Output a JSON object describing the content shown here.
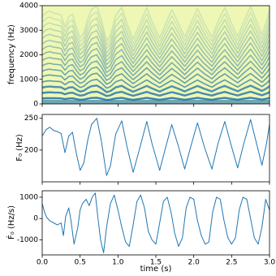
{
  "chart_data": [
    {
      "type": "spectrogram",
      "ylabel": "frequency (Hz)",
      "ylim": [
        0,
        4000
      ],
      "yticks": [
        0,
        1000,
        2000,
        3000,
        4000
      ],
      "colormap": {
        "low": "#eef8b4",
        "high": "#1d6fae"
      }
    },
    {
      "type": "line",
      "ylabel": "F₀ (Hz)",
      "color": "#1f77b4",
      "ylim": [
        150,
        256
      ],
      "yticks": [
        200,
        250
      ],
      "x": [
        0,
        0.05,
        0.1,
        0.15,
        0.2,
        0.25,
        0.3,
        0.35,
        0.4,
        0.45,
        0.5,
        0.55,
        0.6,
        0.65,
        0.72,
        0.78,
        0.85,
        0.9,
        0.97,
        1.05,
        1.12,
        1.2,
        1.27,
        1.38,
        1.45,
        1.55,
        1.62,
        1.71,
        1.8,
        1.88,
        1.96,
        2.05,
        2.14,
        2.24,
        2.32,
        2.41,
        2.5,
        2.58,
        2.66,
        2.75,
        2.83,
        2.9,
        2.96,
        3.0
      ],
      "values": [
        222,
        232,
        236,
        231,
        229,
        226,
        196,
        222,
        228,
        195,
        168,
        180,
        215,
        240,
        250,
        215,
        160,
        175,
        225,
        246,
        205,
        165,
        195,
        245,
        210,
        168,
        200,
        240,
        205,
        170,
        205,
        243,
        205,
        170,
        210,
        245,
        205,
        172,
        210,
        248,
        210,
        176,
        210,
        240
      ]
    },
    {
      "type": "line",
      "ylabel": "Ḟ₀ (Hz/s)",
      "xlabel": "time (s)",
      "color": "#1f77b4",
      "ylim": [
        -1700,
        1300
      ],
      "yticks": [
        -1000,
        0,
        1000
      ],
      "xlim": [
        0,
        3
      ],
      "xticks": [
        {
          "value": 0,
          "label": "0.0"
        },
        0.5,
        {
          "value": 1,
          "label": "1.0"
        },
        1.5,
        {
          "value": 2,
          "label": "2.0"
        },
        2.5,
        {
          "value": 3,
          "label": "3.0"
        }
      ],
      "x": [
        0,
        0.03,
        0.06,
        0.1,
        0.15,
        0.2,
        0.25,
        0.28,
        0.31,
        0.35,
        0.38,
        0.42,
        0.47,
        0.5,
        0.53,
        0.58,
        0.62,
        0.66,
        0.7,
        0.73,
        0.77,
        0.81,
        0.85,
        0.9,
        0.95,
        1.0,
        1.05,
        1.1,
        1.15,
        1.2,
        1.25,
        1.3,
        1.35,
        1.4,
        1.45,
        1.5,
        1.55,
        1.6,
        1.65,
        1.7,
        1.75,
        1.8,
        1.85,
        1.9,
        1.95,
        2.0,
        2.05,
        2.1,
        2.15,
        2.2,
        2.25,
        2.3,
        2.35,
        2.4,
        2.45,
        2.5,
        2.55,
        2.6,
        2.65,
        2.7,
        2.75,
        2.8,
        2.85,
        2.9,
        2.95,
        3.0
      ],
      "values": [
        700,
        300,
        50,
        -100,
        -200,
        -300,
        -200,
        -800,
        100,
        500,
        -100,
        -1200,
        -400,
        400,
        700,
        900,
        600,
        1000,
        1200,
        200,
        -1000,
        -1600,
        -400,
        700,
        1100,
        400,
        -400,
        -1100,
        -1300,
        -300,
        800,
        1100,
        500,
        -600,
        -1000,
        -1200,
        -200,
        800,
        1000,
        300,
        -700,
        -1300,
        -900,
        500,
        1000,
        900,
        -100,
        -800,
        -1200,
        -1100,
        300,
        1000,
        900,
        -100,
        -900,
        -1200,
        -900,
        400,
        1000,
        900,
        0,
        -900,
        -1200,
        -400,
        900,
        400
      ]
    }
  ]
}
